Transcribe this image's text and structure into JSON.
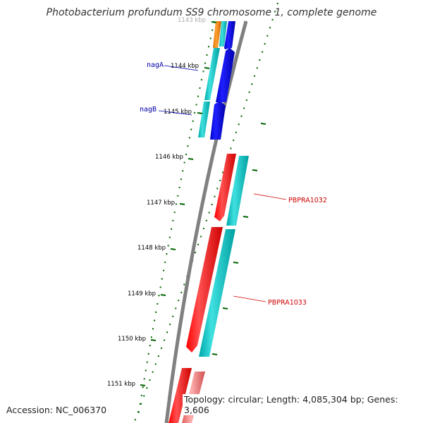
{
  "title": "Photobacterium profundum SS9 chromosome 1, complete genome",
  "footer": {
    "accession": "Accession: NC_006370",
    "topology": "Topology: circular; Length: 4,085,304 bp; Genes: 3,606"
  },
  "ticks": [
    {
      "label": "1143 kbp",
      "faded": true
    },
    {
      "label": "1144 kbp",
      "faded": false
    },
    {
      "label": "1145 kbp",
      "faded": false
    },
    {
      "label": "1146 kbp",
      "faded": false
    },
    {
      "label": "1147 kbp",
      "faded": false
    },
    {
      "label": "1148 kbp",
      "faded": false
    },
    {
      "label": "1149 kbp",
      "faded": false
    },
    {
      "label": "1150 kbp",
      "faded": false
    },
    {
      "label": "1151 kbp",
      "faded": false
    }
  ],
  "gene_labels": [
    {
      "name": "nagA",
      "color": "#0000aa"
    },
    {
      "name": "nagB",
      "color": "#0000aa"
    },
    {
      "name": "PBPRA1032",
      "color": "#cc0000"
    },
    {
      "name": "PBPRA1033",
      "color": "#cc0000"
    }
  ],
  "colors": {
    "cds_forward": "#ff0000",
    "cds_reverse": "#0000ee",
    "feature_cyan": "#00c8c8",
    "feature_orange": "#ff8c00",
    "feature_pink": "#f08080",
    "backbone": "#808080",
    "ticks": "#006400"
  }
}
